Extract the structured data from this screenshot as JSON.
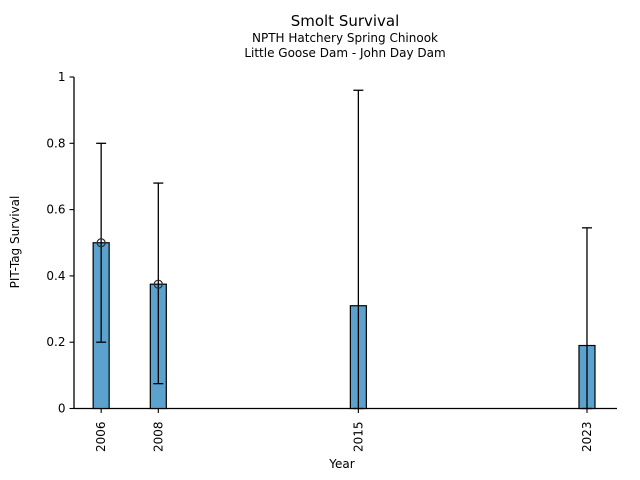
{
  "figure": {
    "background": "#ffffff",
    "title": "Smolt Survival",
    "subtitle_line1": "NPTH Hatchery Spring Chinook",
    "subtitle_line2": "Little Goose Dam - John Day Dam",
    "xlabel": "Year",
    "ylabel": "PIT-Tag Survival"
  },
  "chart_data": {
    "type": "bar",
    "title": "Smolt Survival",
    "subtitle_lines": [
      "NPTH Hatchery Spring Chinook",
      "Little Goose Dam - John Day Dam"
    ],
    "xlabel": "Year",
    "ylabel": "PIT-Tag Survival",
    "categories": [
      "2006",
      "2008",
      "2015",
      "2023"
    ],
    "x_years": [
      2006,
      2008,
      2015,
      2023
    ],
    "values": [
      0.5,
      0.375,
      0.31,
      0.19
    ],
    "error_low": [
      0.2,
      0.075,
      0.0,
      0.0
    ],
    "error_high": [
      0.8,
      0.68,
      0.96,
      0.545
    ],
    "point_markers": [
      true,
      true,
      false,
      false
    ],
    "yticks": [
      0,
      0.2,
      0.4,
      0.6,
      0.8,
      1
    ],
    "ytick_labels": [
      "0",
      "0.2",
      "0.4",
      "0.6",
      "0.8",
      "1"
    ],
    "ylim": [
      0,
      1
    ],
    "xlim": [
      2005.05,
      2024.05
    ],
    "bar_width_years": 0.56,
    "grid": false,
    "legend": null,
    "spines": [
      "left",
      "bottom"
    ],
    "colors": {
      "bar_fill": "#5BA2CF",
      "bar_edge": "#000000",
      "error_bar": "#000000",
      "axis": "#000000",
      "text": "#000000",
      "marker_edge": "#2b2b2b"
    }
  }
}
